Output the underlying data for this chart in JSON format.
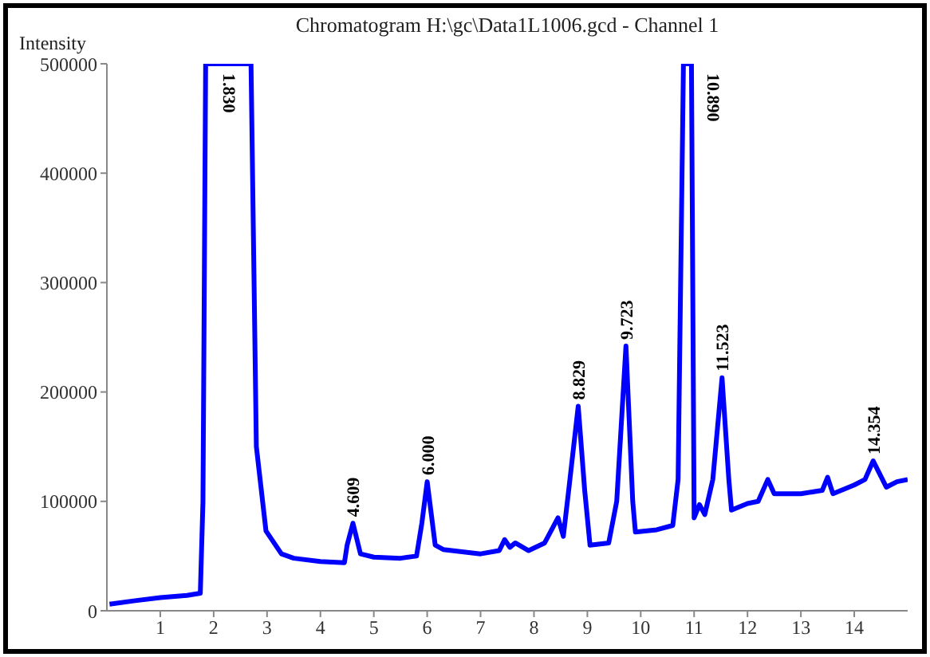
{
  "chart_data": {
    "type": "line",
    "title": "Chromatogram H:\\gc\\Data1L1006.gcd - Channel 1",
    "ylabel": "Intensity",
    "x": [
      0.05,
      0.5,
      1.0,
      1.5,
      1.75,
      1.8,
      1.85,
      2.7,
      2.8,
      2.98,
      3.27,
      3.5,
      4.0,
      4.45,
      4.5,
      4.609,
      4.75,
      5.0,
      5.5,
      5.8,
      5.9,
      6.0,
      6.15,
      6.3,
      7.0,
      7.35,
      7.45,
      7.55,
      7.65,
      7.9,
      8.2,
      8.45,
      8.55,
      8.65,
      8.829,
      8.95,
      9.05,
      9.4,
      9.55,
      9.723,
      9.85,
      9.9,
      10.3,
      10.6,
      10.7,
      10.8,
      10.89,
      10.95,
      11.0,
      11.1,
      11.2,
      11.35,
      11.523,
      11.65,
      11.7,
      12.0,
      12.2,
      12.38,
      12.5,
      13.0,
      13.4,
      13.5,
      13.6,
      14.0,
      14.2,
      14.354,
      14.6,
      14.8,
      15.0
    ],
    "series": [
      {
        "color": "#0000ff",
        "values": [
          6000,
          9000,
          12000,
          14000,
          16000,
          100000,
          500000,
          500000,
          150000,
          73000,
          52000,
          48000,
          45000,
          44000,
          60000,
          80000,
          52000,
          49000,
          48000,
          50000,
          80000,
          118000,
          60000,
          56000,
          52000,
          55000,
          65000,
          58000,
          62000,
          55000,
          62000,
          85000,
          68000,
          110000,
          187000,
          110000,
          60000,
          62000,
          100000,
          242000,
          100000,
          72000,
          74000,
          78000,
          120000,
          500000,
          500000,
          500000,
          85000,
          97000,
          88000,
          120000,
          213000,
          120000,
          92000,
          98000,
          100000,
          120000,
          107000,
          107000,
          110000,
          122000,
          107000,
          115000,
          120000,
          137000,
          113000,
          118000,
          120000
        ]
      }
    ],
    "xlim": [
      0,
      15
    ],
    "xticks": [
      1,
      2,
      3,
      4,
      5,
      6,
      7,
      8,
      9,
      10,
      11,
      12,
      13,
      14
    ],
    "ylim": [
      0,
      500000
    ],
    "yticks": [
      0,
      100000,
      200000,
      300000,
      400000,
      500000
    ],
    "grid": false,
    "legend": false,
    "marker": "none",
    "line_style": "solid",
    "annotations": [
      {
        "text": "1.830",
        "x": 1.83,
        "y": 500000
      },
      {
        "text": "4.609",
        "x": 4.609,
        "y": 80000
      },
      {
        "text": "6.000",
        "x": 6.0,
        "y": 118000
      },
      {
        "text": "8.829",
        "x": 8.829,
        "y": 187000
      },
      {
        "text": "9.723",
        "x": 9.723,
        "y": 242000
      },
      {
        "text": "10.890",
        "x": 10.89,
        "y": 500000
      },
      {
        "text": "11.523",
        "x": 11.523,
        "y": 213000
      },
      {
        "text": "14.354",
        "x": 14.354,
        "y": 137000
      }
    ]
  }
}
